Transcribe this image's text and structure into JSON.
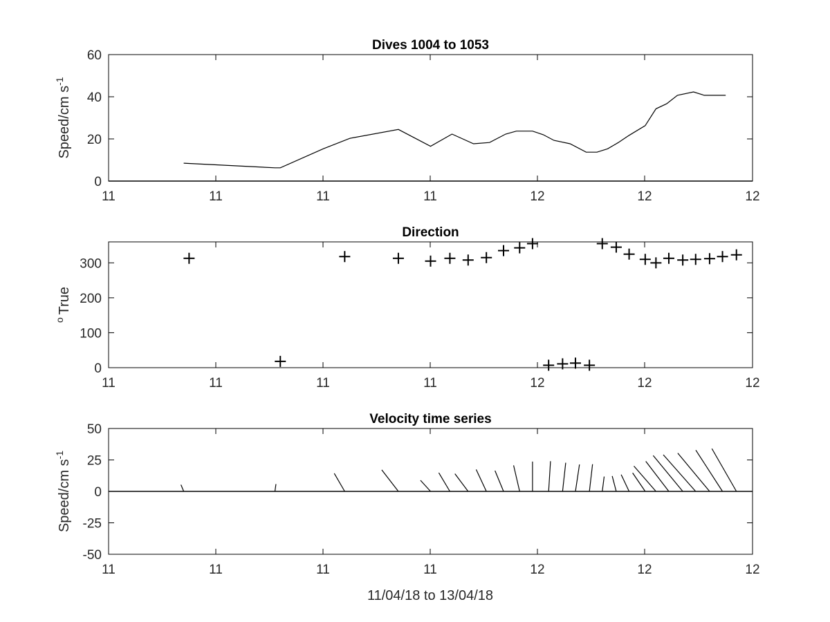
{
  "xlabel": "11/04/18 to 13/04/18",
  "x_tick_labels": [
    "11",
    "11",
    "11",
    "11",
    "12",
    "12",
    "12"
  ],
  "chart_data": [
    {
      "type": "line",
      "title": "Dives 1004 to 1053",
      "ylabel": "Speed/cm s",
      "ylabel_superscript": "-1",
      "xlabel": "",
      "x_tick_labels": [
        "11",
        "11",
        "11",
        "11",
        "12",
        "12",
        "12"
      ],
      "xlim": [
        0,
        6
      ],
      "ylim": [
        0,
        60
      ],
      "y_ticks": [
        0,
        20,
        40,
        60
      ],
      "grid": false,
      "series": [
        {
          "x": [
            0.7,
            1.55,
            1.6,
            2.0,
            2.25,
            2.7,
            3.0,
            3.2,
            3.4,
            3.55,
            3.7,
            3.8,
            3.95,
            4.05,
            4.15,
            4.3,
            4.45,
            4.55,
            4.65,
            4.75,
            4.85,
            5.0,
            5.1,
            5.2,
            5.3,
            5.45,
            5.55,
            5.65,
            5.75
          ],
          "y": [
            8.5,
            6.3,
            6.3,
            15.3,
            20.3,
            24.5,
            16.5,
            22.3,
            17.7,
            18.3,
            22.3,
            23.7,
            23.7,
            22.0,
            19.3,
            17.7,
            13.7,
            13.7,
            15.3,
            18.3,
            21.7,
            26.3,
            34.3,
            36.7,
            40.7,
            42.3,
            40.7,
            40.7,
            40.7
          ]
        }
      ]
    },
    {
      "type": "scatter",
      "title": "Direction",
      "ylabel": "True",
      "ylabel_prefix": "o",
      "xlabel": "",
      "x_tick_labels": [
        "11",
        "11",
        "11",
        "11",
        "12",
        "12",
        "12"
      ],
      "xlim": [
        0,
        6
      ],
      "ylim": [
        0,
        360
      ],
      "y_ticks": [
        0,
        100,
        200,
        300
      ],
      "grid": false,
      "series": [
        {
          "x": [
            0.75,
            1.6,
            2.2,
            2.7,
            3.0,
            3.18,
            3.35,
            3.52,
            3.68,
            3.83,
            3.95,
            4.1,
            4.23,
            4.35,
            4.48,
            4.6,
            4.73,
            4.85,
            5.0,
            5.1,
            5.22,
            5.35,
            5.47,
            5.6,
            5.72,
            5.85
          ],
          "y": [
            313,
            18,
            318,
            313,
            305,
            313,
            308,
            315,
            335,
            343,
            355,
            7,
            11,
            13,
            7,
            355,
            345,
            325,
            310,
            300,
            313,
            308,
            310,
            312,
            318,
            323
          ]
        }
      ]
    },
    {
      "type": "stick",
      "title": "Velocity time series",
      "ylabel": "Speed/cm s",
      "ylabel_superscript": "-1",
      "xlabel": "11/04/18 to 13/04/18",
      "x_tick_labels": [
        "11",
        "11",
        "11",
        "11",
        "12",
        "12",
        "12"
      ],
      "xlim": [
        0,
        6
      ],
      "ylim": [
        -50,
        50
      ],
      "y_ticks": [
        -50,
        -25,
        0,
        25,
        50
      ],
      "grid": false,
      "series": [
        {
          "x": [
            0.7,
            1.55,
            2.2,
            2.7,
            3.0,
            3.18,
            3.35,
            3.52,
            3.68,
            3.83,
            3.95,
            4.1,
            4.23,
            4.35,
            4.48,
            4.6,
            4.73,
            4.85,
            5.0,
            5.1,
            5.22,
            5.35,
            5.47,
            5.6,
            5.72,
            5.85
          ],
          "u": [
            -2.2,
            0.8,
            -8.3,
            -13.2,
            -8.0,
            -8.8,
            -10.5,
            -8.1,
            -6.8,
            -4.8,
            0.0,
            1.5,
            2.5,
            3.2,
            2.5,
            1.5,
            -3.2,
            -6.3,
            -10.0,
            -17.5,
            -18.3,
            -23.5,
            -25.7,
            -25.3,
            -21.2,
            -19.5
          ],
          "v": [
            5.3,
            5.8,
            14.3,
            17.1,
            8.8,
            14.8,
            14.0,
            17.4,
            16.5,
            20.7,
            23.7,
            24.0,
            22.8,
            21.4,
            21.6,
            11.8,
            12.2,
            13.3,
            14.7,
            20.1,
            23.9,
            28.5,
            29.1,
            30.4,
            32.8,
            34.0
          ]
        }
      ]
    }
  ]
}
